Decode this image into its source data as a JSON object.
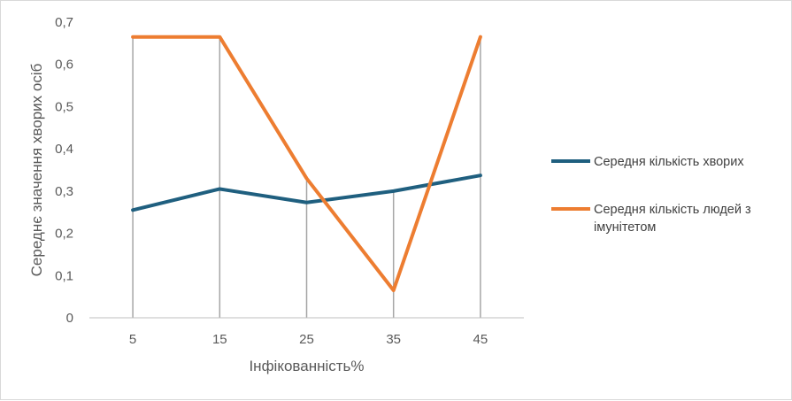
{
  "chart_data": {
    "type": "line",
    "categories": [
      "5",
      "15",
      "25",
      "35",
      "45"
    ],
    "series": [
      {
        "name": "Середня кількість хворих",
        "values": [
          0.255,
          0.305,
          0.273,
          0.3,
          0.337
        ],
        "color": "#1f5f7f"
      },
      {
        "name": "Середня кількість людей з імунітетом",
        "values": [
          0.665,
          0.665,
          0.33,
          0.065,
          0.665
        ],
        "color": "#ed7d31"
      }
    ],
    "xlabel": "Інфікованність%",
    "ylabel": "Середнє значення хворих осіб",
    "ylim": [
      0,
      0.7
    ],
    "yticks": [
      "0",
      "0,1",
      "0,2",
      "0,3",
      "0,4",
      "0,5",
      "0,6",
      "0,7"
    ],
    "yticks_values": [
      0,
      0.1,
      0.2,
      0.3,
      0.4,
      0.5,
      0.6,
      0.7
    ],
    "grid": "vertical drop lines",
    "legend": "right"
  }
}
